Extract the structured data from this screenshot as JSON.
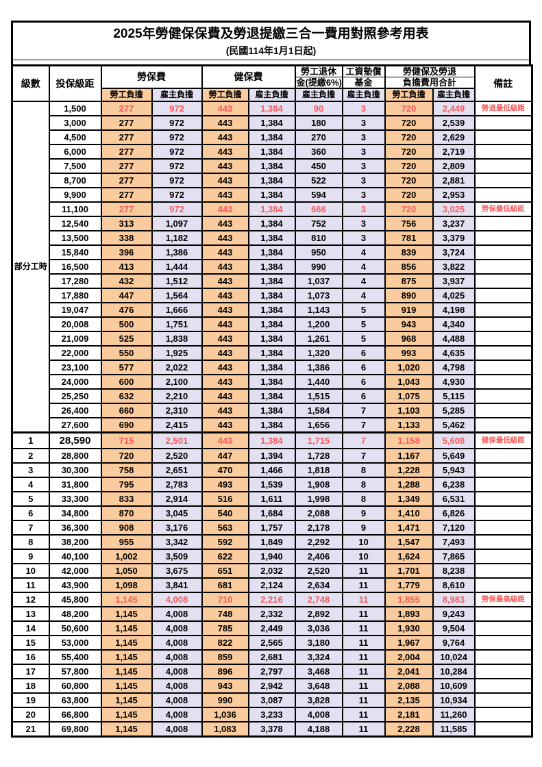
{
  "title": {
    "line1": "2025年勞健保保費及勞退提繳三合一費用對照參考用表",
    "line2": "(民國114年1月1日起)"
  },
  "header": {
    "level": "級數",
    "salary": "投保級距",
    "labor_group": "勞保費",
    "health_group": "健保費",
    "pension_line1": "勞工退休",
    "pension_line2": "金(提繳6%)",
    "wage_line1": "工資墊償",
    "wage_line2": "基金",
    "total_line1": "勞健保及勞退",
    "total_line2": "負擔費用合計",
    "note": "備註",
    "employee": "勞工負擔",
    "employer": "雇主負擔"
  },
  "colors": {
    "employee_bg": "#FACB9C",
    "employer_bg": "#E3E1F1",
    "highlight_text": "#F85B5B"
  },
  "part_time_label": "部分工時",
  "part_time_rowspan": 23,
  "rows": [
    {
      "level": null,
      "salary": "1,500",
      "labor_emp": "277",
      "labor_er": "972",
      "health_emp": "443",
      "health_er": "1,384",
      "pension": "90",
      "wage_fund": "3",
      "total_emp": "720",
      "total_er": "2,449",
      "note": "勞退最低級距",
      "highlight": true,
      "emphasis": false
    },
    {
      "level": null,
      "salary": "3,000",
      "labor_emp": "277",
      "labor_er": "972",
      "health_emp": "443",
      "health_er": "1,384",
      "pension": "180",
      "wage_fund": "3",
      "total_emp": "720",
      "total_er": "2,539",
      "note": "",
      "highlight": false,
      "emphasis": false
    },
    {
      "level": null,
      "salary": "4,500",
      "labor_emp": "277",
      "labor_er": "972",
      "health_emp": "443",
      "health_er": "1,384",
      "pension": "270",
      "wage_fund": "3",
      "total_emp": "720",
      "total_er": "2,629",
      "note": "",
      "highlight": false,
      "emphasis": false
    },
    {
      "level": null,
      "salary": "6,000",
      "labor_emp": "277",
      "labor_er": "972",
      "health_emp": "443",
      "health_er": "1,384",
      "pension": "360",
      "wage_fund": "3",
      "total_emp": "720",
      "total_er": "2,719",
      "note": "",
      "highlight": false,
      "emphasis": false
    },
    {
      "level": null,
      "salary": "7,500",
      "labor_emp": "277",
      "labor_er": "972",
      "health_emp": "443",
      "health_er": "1,384",
      "pension": "450",
      "wage_fund": "3",
      "total_emp": "720",
      "total_er": "2,809",
      "note": "",
      "highlight": false,
      "emphasis": false
    },
    {
      "level": null,
      "salary": "8,700",
      "labor_emp": "277",
      "labor_er": "972",
      "health_emp": "443",
      "health_er": "1,384",
      "pension": "522",
      "wage_fund": "3",
      "total_emp": "720",
      "total_er": "2,881",
      "note": "",
      "highlight": false,
      "emphasis": false
    },
    {
      "level": null,
      "salary": "9,900",
      "labor_emp": "277",
      "labor_er": "972",
      "health_emp": "443",
      "health_er": "1,384",
      "pension": "594",
      "wage_fund": "3",
      "total_emp": "720",
      "total_er": "2,953",
      "note": "",
      "highlight": false,
      "emphasis": false
    },
    {
      "level": null,
      "salary": "11,100",
      "labor_emp": "277",
      "labor_er": "972",
      "health_emp": "443",
      "health_er": "1,384",
      "pension": "666",
      "wage_fund": "3",
      "total_emp": "720",
      "total_er": "3,025",
      "note": "勞保最低級距",
      "highlight": true,
      "emphasis": false
    },
    {
      "level": null,
      "salary": "12,540",
      "labor_emp": "313",
      "labor_er": "1,097",
      "health_emp": "443",
      "health_er": "1,384",
      "pension": "752",
      "wage_fund": "3",
      "total_emp": "756",
      "total_er": "3,237",
      "note": "",
      "highlight": false,
      "emphasis": false
    },
    {
      "level": null,
      "salary": "13,500",
      "labor_emp": "338",
      "labor_er": "1,182",
      "health_emp": "443",
      "health_er": "1,384",
      "pension": "810",
      "wage_fund": "3",
      "total_emp": "781",
      "total_er": "3,379",
      "note": "",
      "highlight": false,
      "emphasis": false
    },
    {
      "level": null,
      "salary": "15,840",
      "labor_emp": "396",
      "labor_er": "1,386",
      "health_emp": "443",
      "health_er": "1,384",
      "pension": "950",
      "wage_fund": "4",
      "total_emp": "839",
      "total_er": "3,724",
      "note": "",
      "highlight": false,
      "emphasis": false
    },
    {
      "level": null,
      "salary": "16,500",
      "labor_emp": "413",
      "labor_er": "1,444",
      "health_emp": "443",
      "health_er": "1,384",
      "pension": "990",
      "wage_fund": "4",
      "total_emp": "856",
      "total_er": "3,822",
      "note": "",
      "highlight": false,
      "emphasis": false
    },
    {
      "level": null,
      "salary": "17,280",
      "labor_emp": "432",
      "labor_er": "1,512",
      "health_emp": "443",
      "health_er": "1,384",
      "pension": "1,037",
      "wage_fund": "4",
      "total_emp": "875",
      "total_er": "3,937",
      "note": "",
      "highlight": false,
      "emphasis": false
    },
    {
      "level": null,
      "salary": "17,880",
      "labor_emp": "447",
      "labor_er": "1,564",
      "health_emp": "443",
      "health_er": "1,384",
      "pension": "1,073",
      "wage_fund": "4",
      "total_emp": "890",
      "total_er": "4,025",
      "note": "",
      "highlight": false,
      "emphasis": false
    },
    {
      "level": null,
      "salary": "19,047",
      "labor_emp": "476",
      "labor_er": "1,666",
      "health_emp": "443",
      "health_er": "1,384",
      "pension": "1,143",
      "wage_fund": "5",
      "total_emp": "919",
      "total_er": "4,198",
      "note": "",
      "highlight": false,
      "emphasis": false
    },
    {
      "level": null,
      "salary": "20,008",
      "labor_emp": "500",
      "labor_er": "1,751",
      "health_emp": "443",
      "health_er": "1,384",
      "pension": "1,200",
      "wage_fund": "5",
      "total_emp": "943",
      "total_er": "4,340",
      "note": "",
      "highlight": false,
      "emphasis": false
    },
    {
      "level": null,
      "salary": "21,009",
      "labor_emp": "525",
      "labor_er": "1,838",
      "health_emp": "443",
      "health_er": "1,384",
      "pension": "1,261",
      "wage_fund": "5",
      "total_emp": "968",
      "total_er": "4,488",
      "note": "",
      "highlight": false,
      "emphasis": false
    },
    {
      "level": null,
      "salary": "22,000",
      "labor_emp": "550",
      "labor_er": "1,925",
      "health_emp": "443",
      "health_er": "1,384",
      "pension": "1,320",
      "wage_fund": "6",
      "total_emp": "993",
      "total_er": "4,635",
      "note": "",
      "highlight": false,
      "emphasis": false
    },
    {
      "level": null,
      "salary": "23,100",
      "labor_emp": "577",
      "labor_er": "2,022",
      "health_emp": "443",
      "health_er": "1,384",
      "pension": "1,386",
      "wage_fund": "6",
      "total_emp": "1,020",
      "total_er": "4,798",
      "note": "",
      "highlight": false,
      "emphasis": false
    },
    {
      "level": null,
      "salary": "24,000",
      "labor_emp": "600",
      "labor_er": "2,100",
      "health_emp": "443",
      "health_er": "1,384",
      "pension": "1,440",
      "wage_fund": "6",
      "total_emp": "1,043",
      "total_er": "4,930",
      "note": "",
      "highlight": false,
      "emphasis": false
    },
    {
      "level": null,
      "salary": "25,250",
      "labor_emp": "632",
      "labor_er": "2,210",
      "health_emp": "443",
      "health_er": "1,384",
      "pension": "1,515",
      "wage_fund": "6",
      "total_emp": "1,075",
      "total_er": "5,115",
      "note": "",
      "highlight": false,
      "emphasis": false
    },
    {
      "level": null,
      "salary": "26,400",
      "labor_emp": "660",
      "labor_er": "2,310",
      "health_emp": "443",
      "health_er": "1,384",
      "pension": "1,584",
      "wage_fund": "7",
      "total_emp": "1,103",
      "total_er": "5,285",
      "note": "",
      "highlight": false,
      "emphasis": false
    },
    {
      "level": null,
      "salary": "27,600",
      "labor_emp": "690",
      "labor_er": "2,415",
      "health_emp": "443",
      "health_er": "1,384",
      "pension": "1,656",
      "wage_fund": "7",
      "total_emp": "1,133",
      "total_er": "5,462",
      "note": "",
      "highlight": false,
      "emphasis": false
    },
    {
      "level": "1",
      "salary": "28,590",
      "labor_emp": "715",
      "labor_er": "2,501",
      "health_emp": "443",
      "health_er": "1,384",
      "pension": "1,715",
      "wage_fund": "7",
      "total_emp": "1,158",
      "total_er": "5,608",
      "note": "健保最低級距",
      "highlight": true,
      "emphasis": true
    },
    {
      "level": "2",
      "salary": "28,800",
      "labor_emp": "720",
      "labor_er": "2,520",
      "health_emp": "447",
      "health_er": "1,394",
      "pension": "1,728",
      "wage_fund": "7",
      "total_emp": "1,167",
      "total_er": "5,649",
      "note": "",
      "highlight": false,
      "emphasis": false
    },
    {
      "level": "3",
      "salary": "30,300",
      "labor_emp": "758",
      "labor_er": "2,651",
      "health_emp": "470",
      "health_er": "1,466",
      "pension": "1,818",
      "wage_fund": "8",
      "total_emp": "1,228",
      "total_er": "5,943",
      "note": "",
      "highlight": false,
      "emphasis": false
    },
    {
      "level": "4",
      "salary": "31,800",
      "labor_emp": "795",
      "labor_er": "2,783",
      "health_emp": "493",
      "health_er": "1,539",
      "pension": "1,908",
      "wage_fund": "8",
      "total_emp": "1,288",
      "total_er": "6,238",
      "note": "",
      "highlight": false,
      "emphasis": false
    },
    {
      "level": "5",
      "salary": "33,300",
      "labor_emp": "833",
      "labor_er": "2,914",
      "health_emp": "516",
      "health_er": "1,611",
      "pension": "1,998",
      "wage_fund": "8",
      "total_emp": "1,349",
      "total_er": "6,531",
      "note": "",
      "highlight": false,
      "emphasis": false
    },
    {
      "level": "6",
      "salary": "34,800",
      "labor_emp": "870",
      "labor_er": "3,045",
      "health_emp": "540",
      "health_er": "1,684",
      "pension": "2,088",
      "wage_fund": "9",
      "total_emp": "1,410",
      "total_er": "6,826",
      "note": "",
      "highlight": false,
      "emphasis": false
    },
    {
      "level": "7",
      "salary": "36,300",
      "labor_emp": "908",
      "labor_er": "3,176",
      "health_emp": "563",
      "health_er": "1,757",
      "pension": "2,178",
      "wage_fund": "9",
      "total_emp": "1,471",
      "total_er": "7,120",
      "note": "",
      "highlight": false,
      "emphasis": false
    },
    {
      "level": "8",
      "salary": "38,200",
      "labor_emp": "955",
      "labor_er": "3,342",
      "health_emp": "592",
      "health_er": "1,849",
      "pension": "2,292",
      "wage_fund": "10",
      "total_emp": "1,547",
      "total_er": "7,493",
      "note": "",
      "highlight": false,
      "emphasis": false
    },
    {
      "level": "9",
      "salary": "40,100",
      "labor_emp": "1,002",
      "labor_er": "3,509",
      "health_emp": "622",
      "health_er": "1,940",
      "pension": "2,406",
      "wage_fund": "10",
      "total_emp": "1,624",
      "total_er": "7,865",
      "note": "",
      "highlight": false,
      "emphasis": false
    },
    {
      "level": "10",
      "salary": "42,000",
      "labor_emp": "1,050",
      "labor_er": "3,675",
      "health_emp": "651",
      "health_er": "2,032",
      "pension": "2,520",
      "wage_fund": "11",
      "total_emp": "1,701",
      "total_er": "8,238",
      "note": "",
      "highlight": false,
      "emphasis": false
    },
    {
      "level": "11",
      "salary": "43,900",
      "labor_emp": "1,098",
      "labor_er": "3,841",
      "health_emp": "681",
      "health_er": "2,124",
      "pension": "2,634",
      "wage_fund": "11",
      "total_emp": "1,779",
      "total_er": "8,610",
      "note": "",
      "highlight": false,
      "emphasis": false
    },
    {
      "level": "12",
      "salary": "45,800",
      "labor_emp": "1,145",
      "labor_er": "4,008",
      "health_emp": "710",
      "health_er": "2,216",
      "pension": "2,748",
      "wage_fund": "11",
      "total_emp": "1,855",
      "total_er": "8,983",
      "note": "勞保最高級距",
      "highlight": true,
      "emphasis": false
    },
    {
      "level": "13",
      "salary": "48,200",
      "labor_emp": "1,145",
      "labor_er": "4,008",
      "health_emp": "748",
      "health_er": "2,332",
      "pension": "2,892",
      "wage_fund": "11",
      "total_emp": "1,893",
      "total_er": "9,243",
      "note": "",
      "highlight": false,
      "emphasis": false
    },
    {
      "level": "14",
      "salary": "50,600",
      "labor_emp": "1,145",
      "labor_er": "4,008",
      "health_emp": "785",
      "health_er": "2,449",
      "pension": "3,036",
      "wage_fund": "11",
      "total_emp": "1,930",
      "total_er": "9,504",
      "note": "",
      "highlight": false,
      "emphasis": false
    },
    {
      "level": "15",
      "salary": "53,000",
      "labor_emp": "1,145",
      "labor_er": "4,008",
      "health_emp": "822",
      "health_er": "2,565",
      "pension": "3,180",
      "wage_fund": "11",
      "total_emp": "1,967",
      "total_er": "9,764",
      "note": "",
      "highlight": false,
      "emphasis": false
    },
    {
      "level": "16",
      "salary": "55,400",
      "labor_emp": "1,145",
      "labor_er": "4,008",
      "health_emp": "859",
      "health_er": "2,681",
      "pension": "3,324",
      "wage_fund": "11",
      "total_emp": "2,004",
      "total_er": "10,024",
      "note": "",
      "highlight": false,
      "emphasis": false
    },
    {
      "level": "17",
      "salary": "57,800",
      "labor_emp": "1,145",
      "labor_er": "4,008",
      "health_emp": "896",
      "health_er": "2,797",
      "pension": "3,468",
      "wage_fund": "11",
      "total_emp": "2,041",
      "total_er": "10,284",
      "note": "",
      "highlight": false,
      "emphasis": false
    },
    {
      "level": "18",
      "salary": "60,800",
      "labor_emp": "1,145",
      "labor_er": "4,008",
      "health_emp": "943",
      "health_er": "2,942",
      "pension": "3,648",
      "wage_fund": "11",
      "total_emp": "2,088",
      "total_er": "10,609",
      "note": "",
      "highlight": false,
      "emphasis": false
    },
    {
      "level": "19",
      "salary": "63,800",
      "labor_emp": "1,145",
      "labor_er": "4,008",
      "health_emp": "990",
      "health_er": "3,087",
      "pension": "3,828",
      "wage_fund": "11",
      "total_emp": "2,135",
      "total_er": "10,934",
      "note": "",
      "highlight": false,
      "emphasis": false
    },
    {
      "level": "20",
      "salary": "66,800",
      "labor_emp": "1,145",
      "labor_er": "4,008",
      "health_emp": "1,036",
      "health_er": "3,233",
      "pension": "4,008",
      "wage_fund": "11",
      "total_emp": "2,181",
      "total_er": "11,260",
      "note": "",
      "highlight": false,
      "emphasis": false
    },
    {
      "level": "21",
      "salary": "69,800",
      "labor_emp": "1,145",
      "labor_er": "4,008",
      "health_emp": "1,083",
      "health_er": "3,378",
      "pension": "4,188",
      "wage_fund": "11",
      "total_emp": "2,228",
      "total_er": "11,585",
      "note": "",
      "highlight": false,
      "emphasis": false
    }
  ]
}
